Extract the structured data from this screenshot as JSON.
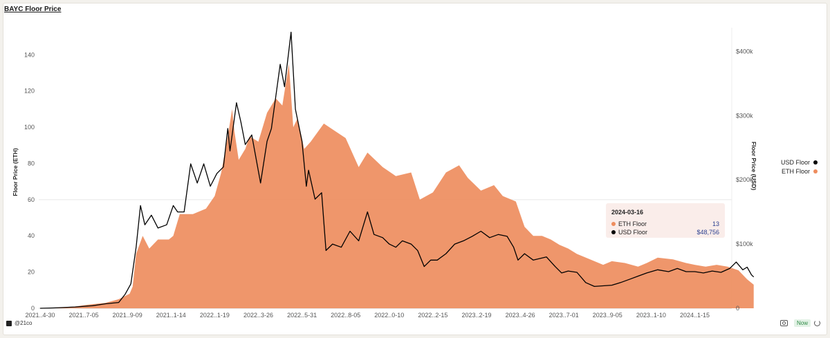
{
  "title": "BAYC Floor Price",
  "footer": {
    "brand": "@21co",
    "status": "Now"
  },
  "legend": [
    {
      "label": "USD Floor",
      "color": "#000000"
    },
    {
      "label": "ETH Floor",
      "color": "#ee8d5e"
    }
  ],
  "tooltip": {
    "date": "2024-03-16",
    "rows": [
      {
        "label": "ETH Floor",
        "value": "13",
        "color": "#ee8d5e"
      },
      {
        "label": "USD Floor",
        "value": "$48,756",
        "color": "#000000"
      }
    ]
  },
  "chart_data": {
    "type": "area",
    "title": "BAYC Floor Price",
    "x_tick_labels": [
      "2021..4-30",
      "2021..7-05",
      "2021..9-09",
      "2021..1-14",
      "2022..1-19",
      "2022..3-26",
      "2022..5-31",
      "2022..8-05",
      "2022..0-10",
      "2022..2-15",
      "2023..2-19",
      "2023..4-26",
      "2023..7-01",
      "2023..9-05",
      "2023..1-10",
      "2024..1-15"
    ],
    "y_left": {
      "label": "Floor Price (ETH)",
      "ticks": [
        0,
        20,
        40,
        60,
        80,
        100,
        120,
        140
      ],
      "range": [
        0,
        155
      ]
    },
    "y_right": {
      "label": "Floor Price (USD)",
      "ticks": [
        "0",
        "$100k",
        "$200k",
        "$300k",
        "$400k"
      ],
      "tick_values": [
        0,
        100000,
        200000,
        300000,
        400000
      ],
      "range": [
        0,
        437000
      ]
    },
    "grid": "horizontal line at 60 ETH",
    "series": [
      {
        "name": "ETH Floor",
        "axis": "left",
        "color": "#ee8d5e",
        "points": [
          [
            0,
            0
          ],
          [
            0.3,
            0.2
          ],
          [
            0.8,
            1
          ],
          [
            1.1,
            2
          ],
          [
            1.5,
            3
          ],
          [
            1.8,
            5
          ],
          [
            2.05,
            8
          ],
          [
            2.12,
            12
          ],
          [
            2.2,
            30
          ],
          [
            2.35,
            40
          ],
          [
            2.5,
            33
          ],
          [
            2.7,
            38
          ],
          [
            2.95,
            38
          ],
          [
            3.05,
            40
          ],
          [
            3.2,
            52
          ],
          [
            3.5,
            52
          ],
          [
            3.8,
            55
          ],
          [
            4.0,
            62
          ],
          [
            4.15,
            75
          ],
          [
            4.3,
            95
          ],
          [
            4.4,
            110
          ],
          [
            4.45,
            98
          ],
          [
            4.55,
            82
          ],
          [
            4.7,
            88
          ],
          [
            4.8,
            95
          ],
          [
            5.0,
            92
          ],
          [
            5.2,
            108
          ],
          [
            5.4,
            116
          ],
          [
            5.55,
            112
          ],
          [
            5.7,
            135
          ],
          [
            5.8,
            100
          ],
          [
            5.9,
            105
          ],
          [
            6.05,
            88
          ],
          [
            6.2,
            92
          ],
          [
            6.5,
            102
          ],
          [
            6.75,
            98
          ],
          [
            7.0,
            94
          ],
          [
            7.3,
            78
          ],
          [
            7.5,
            86
          ],
          [
            7.85,
            78
          ],
          [
            8.15,
            73
          ],
          [
            8.5,
            75
          ],
          [
            8.7,
            60
          ],
          [
            9.0,
            64
          ],
          [
            9.3,
            75
          ],
          [
            9.6,
            79
          ],
          [
            9.8,
            72
          ],
          [
            10.1,
            65
          ],
          [
            10.4,
            68
          ],
          [
            10.6,
            62
          ],
          [
            10.9,
            59
          ],
          [
            11.1,
            45
          ],
          [
            11.3,
            40
          ],
          [
            11.5,
            40
          ],
          [
            11.7,
            38
          ],
          [
            11.9,
            35
          ],
          [
            12.1,
            33
          ],
          [
            12.3,
            30
          ],
          [
            12.6,
            27
          ],
          [
            12.9,
            24
          ],
          [
            13.1,
            26
          ],
          [
            13.4,
            25
          ],
          [
            13.7,
            23
          ],
          [
            13.9,
            25
          ],
          [
            14.15,
            28
          ],
          [
            14.5,
            27
          ],
          [
            14.8,
            25
          ],
          [
            15.0,
            24
          ],
          [
            15.25,
            23
          ],
          [
            15.5,
            24
          ],
          [
            15.75,
            23
          ],
          [
            16.0,
            21
          ],
          [
            16.2,
            16
          ],
          [
            16.35,
            13
          ]
        ]
      },
      {
        "name": "USD Floor",
        "axis": "right",
        "color": "#000000",
        "points": [
          [
            0,
            0
          ],
          [
            0.3,
            500
          ],
          [
            0.8,
            2000
          ],
          [
            1.2,
            4000
          ],
          [
            1.5,
            7000
          ],
          [
            1.8,
            9000
          ],
          [
            1.95,
            22000
          ],
          [
            2.08,
            38000
          ],
          [
            2.2,
            95000
          ],
          [
            2.3,
            160000
          ],
          [
            2.4,
            130000
          ],
          [
            2.55,
            145000
          ],
          [
            2.7,
            125000
          ],
          [
            2.9,
            130000
          ],
          [
            3.05,
            160000
          ],
          [
            3.15,
            150000
          ],
          [
            3.3,
            150000
          ],
          [
            3.45,
            225000
          ],
          [
            3.6,
            195000
          ],
          [
            3.75,
            225000
          ],
          [
            3.9,
            190000
          ],
          [
            4.05,
            210000
          ],
          [
            4.2,
            220000
          ],
          [
            4.3,
            280000
          ],
          [
            4.35,
            245000
          ],
          [
            4.5,
            320000
          ],
          [
            4.6,
            290000
          ],
          [
            4.7,
            255000
          ],
          [
            4.85,
            270000
          ],
          [
            5.05,
            195000
          ],
          [
            5.2,
            260000
          ],
          [
            5.3,
            280000
          ],
          [
            5.5,
            380000
          ],
          [
            5.6,
            345000
          ],
          [
            5.75,
            430000
          ],
          [
            5.85,
            310000
          ],
          [
            6.0,
            260000
          ],
          [
            6.1,
            190000
          ],
          [
            6.15,
            215000
          ],
          [
            6.3,
            170000
          ],
          [
            6.45,
            180000
          ],
          [
            6.55,
            90000
          ],
          [
            6.7,
            100000
          ],
          [
            6.9,
            95000
          ],
          [
            7.1,
            120000
          ],
          [
            7.3,
            105000
          ],
          [
            7.5,
            150000
          ],
          [
            7.65,
            115000
          ],
          [
            7.85,
            110000
          ],
          [
            8.0,
            100000
          ],
          [
            8.15,
            95000
          ],
          [
            8.3,
            105000
          ],
          [
            8.5,
            100000
          ],
          [
            8.65,
            90000
          ],
          [
            8.8,
            65000
          ],
          [
            8.95,
            75000
          ],
          [
            9.1,
            75000
          ],
          [
            9.3,
            85000
          ],
          [
            9.5,
            100000
          ],
          [
            9.7,
            105000
          ],
          [
            9.9,
            112000
          ],
          [
            10.1,
            120000
          ],
          [
            10.3,
            110000
          ],
          [
            10.5,
            115000
          ],
          [
            10.7,
            112000
          ],
          [
            10.85,
            95000
          ],
          [
            10.95,
            75000
          ],
          [
            11.1,
            85000
          ],
          [
            11.3,
            75000
          ],
          [
            11.6,
            80000
          ],
          [
            11.8,
            65000
          ],
          [
            11.95,
            55000
          ],
          [
            12.1,
            58000
          ],
          [
            12.3,
            56000
          ],
          [
            12.5,
            40000
          ],
          [
            12.7,
            34000
          ],
          [
            12.9,
            35000
          ],
          [
            13.1,
            36000
          ],
          [
            13.3,
            40000
          ],
          [
            13.5,
            45000
          ],
          [
            13.7,
            50000
          ],
          [
            13.9,
            55000
          ],
          [
            14.15,
            60000
          ],
          [
            14.4,
            57000
          ],
          [
            14.6,
            62000
          ],
          [
            14.8,
            57000
          ],
          [
            15.0,
            57000
          ],
          [
            15.2,
            55000
          ],
          [
            15.4,
            58000
          ],
          [
            15.6,
            56000
          ],
          [
            15.8,
            62000
          ],
          [
            15.95,
            72000
          ],
          [
            16.1,
            60000
          ],
          [
            16.2,
            64000
          ],
          [
            16.3,
            52000
          ],
          [
            16.35,
            48756
          ]
        ]
      }
    ]
  }
}
